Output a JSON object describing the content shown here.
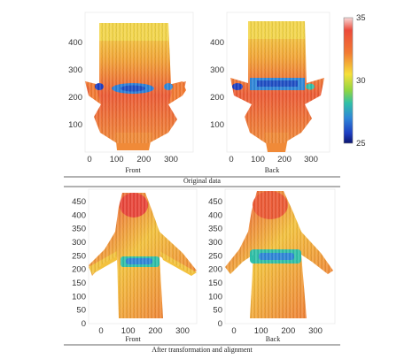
{
  "chart_data": [
    {
      "type": "heatmap",
      "panel": "Front",
      "group": "Original data",
      "title": "",
      "xlabel": "",
      "ylabel": "",
      "xticks": [
        0,
        100,
        200,
        300
      ],
      "yticks": [
        100,
        200,
        300,
        400
      ],
      "xlim": [
        -30,
        360
      ],
      "ylim": [
        0,
        480
      ],
      "color_range": [
        25,
        35
      ]
    },
    {
      "type": "heatmap",
      "panel": "Back",
      "group": "Original data",
      "title": "",
      "xlabel": "",
      "ylabel": "",
      "xticks": [
        0,
        100,
        200,
        300
      ],
      "yticks": [
        100,
        200,
        300,
        400
      ],
      "xlim": [
        -30,
        360
      ],
      "ylim": [
        0,
        480
      ],
      "color_range": [
        25,
        35
      ]
    },
    {
      "type": "heatmap",
      "panel": "Front",
      "group": "After transformation and alignment",
      "title": "",
      "xlabel": "",
      "ylabel": "",
      "xticks": [
        0,
        100,
        200,
        300
      ],
      "yticks": [
        0,
        50,
        100,
        150,
        200,
        250,
        300,
        350,
        400,
        450
      ],
      "xlim": [
        -60,
        370
      ],
      "ylim": [
        0,
        480
      ],
      "color_range": [
        25,
        35
      ]
    },
    {
      "type": "heatmap",
      "panel": "Back",
      "group": "After transformation and alignment",
      "title": "",
      "xlabel": "",
      "ylabel": "",
      "xticks": [
        0,
        100,
        200,
        300
      ],
      "yticks": [
        0,
        50,
        100,
        150,
        200,
        250,
        300,
        350,
        400,
        450
      ],
      "xlim": [
        -60,
        370
      ],
      "ylim": [
        0,
        480
      ],
      "color_range": [
        25,
        35
      ]
    }
  ],
  "colorbar": {
    "ticks": [
      25,
      30,
      35
    ],
    "min": 25,
    "max": 35
  },
  "labels": {
    "top_front": "Front",
    "top_back": "Back",
    "top_caption": "Original data",
    "bottom_front": "Front",
    "bottom_back": "Back",
    "bottom_caption": "After transformation and alignment"
  }
}
